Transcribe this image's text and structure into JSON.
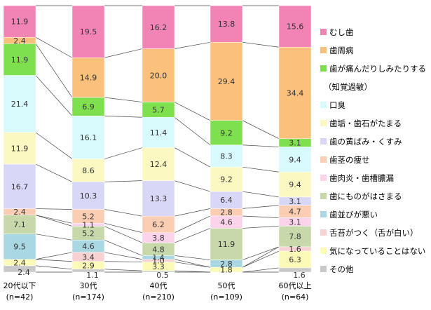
{
  "chart_data": {
    "type": "bar",
    "stacked": true,
    "normalized": true,
    "ylim": [
      0,
      100
    ],
    "legend_position": "right",
    "categories": [
      "20代以下",
      "30代",
      "40代",
      "50代",
      "60代以上"
    ],
    "category_counts": [
      "(n=42)",
      "(n=174)",
      "(n=210)",
      "(n=109)",
      "(n=64)"
    ],
    "series": [
      {
        "name": "むし歯",
        "color": "#f283b5",
        "values": [
          11.9,
          19.5,
          16.2,
          13.8,
          15.6
        ]
      },
      {
        "name": "歯周病",
        "color": "#fbc07c",
        "values": [
          2.4,
          14.9,
          20.0,
          29.4,
          34.4
        ]
      },
      {
        "name": "歯が痛んだりしみたりする",
        "name_extra": "（知覚過敏）",
        "color": "#7ee04e",
        "values": [
          11.9,
          6.9,
          5.7,
          9.2,
          3.1
        ]
      },
      {
        "name": "口臭",
        "color": "#d8fafd",
        "values": [
          21.4,
          16.1,
          11.4,
          8.3,
          9.4
        ]
      },
      {
        "name": "歯垢・歯石がたまる",
        "color": "#fcf8c2",
        "values": [
          11.9,
          8.6,
          12.4,
          9.2,
          9.4
        ]
      },
      {
        "name": "歯の黄ばみ・くすみ",
        "color": "#d9d7f7",
        "values": [
          16.7,
          10.3,
          13.3,
          6.4,
          3.1
        ]
      },
      {
        "name": "歯茎の痩せ",
        "color": "#fbcdb3",
        "values": [
          2.4,
          5.2,
          6.2,
          2.8,
          4.7
        ]
      },
      {
        "name": "歯肉炎・歯槽膿漏",
        "color": "#fbd3ea",
        "values": [
          0,
          1.1,
          3.8,
          4.6,
          3.1
        ]
      },
      {
        "name": "歯にものがはさまる",
        "color": "#c7d9ab",
        "values": [
          7.1,
          5.2,
          4.8,
          11.9,
          7.8
        ]
      },
      {
        "name": "歯並びが悪い",
        "color": "#a9d8e3",
        "values": [
          9.5,
          4.6,
          1.4,
          2.8,
          0
        ]
      },
      {
        "name": "舌苔がつく（舌が白い）",
        "color": "#f8d2d2",
        "values": [
          0,
          3.4,
          1.0,
          0,
          1.6
        ]
      },
      {
        "name": "気になっていることはない",
        "color": "#fcfab7",
        "values": [
          2.4,
          2.9,
          3.3,
          1.8,
          6.3
        ]
      },
      {
        "name": "その他",
        "color": "#c9c9c9",
        "values": [
          2.4,
          1.1,
          0.5,
          0,
          1.6
        ]
      }
    ]
  }
}
